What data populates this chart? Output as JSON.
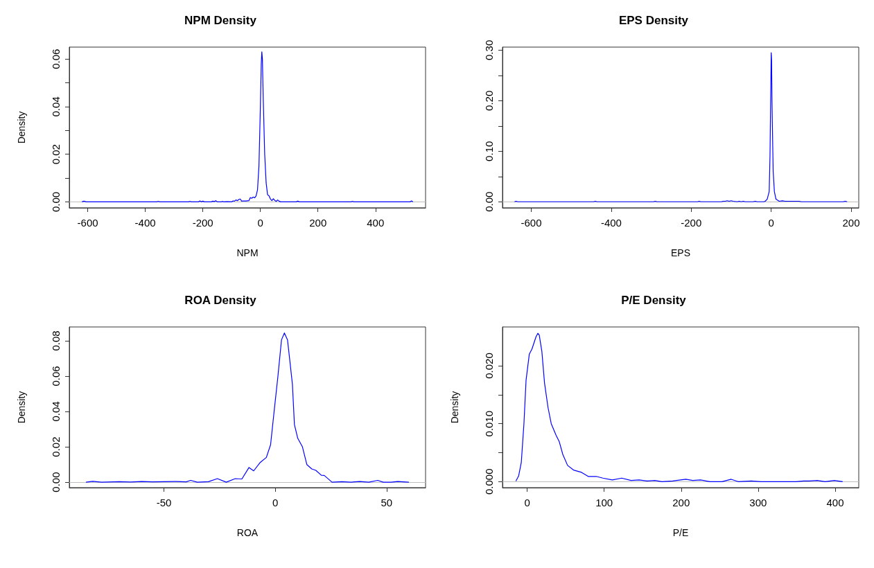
{
  "chart_data": [
    {
      "type": "line",
      "title": "NPM Density",
      "xlabel": "NPM",
      "ylabel": "Density",
      "color": "#0000ff",
      "marker": "none",
      "xlim": [
        -664,
        574
      ],
      "xticks": [
        -600,
        -400,
        -200,
        0,
        200,
        400
      ],
      "ylim": [
        -0.0025,
        0.065
      ],
      "yticks": [
        {
          "value": 0,
          "label": "0.00"
        },
        {
          "value": 0.01,
          "label": null
        },
        {
          "value": 0.02,
          "label": "0.02"
        },
        {
          "value": 0.03,
          "label": null
        },
        {
          "value": 0.04,
          "label": "0.04"
        },
        {
          "value": 0.05,
          "label": null
        },
        {
          "value": 0.06,
          "label": "0.06"
        }
      ],
      "ref_lines": [
        {
          "axis": "y",
          "value": 0,
          "color": "#bebebe"
        }
      ],
      "x": [
        -620,
        -613,
        -606,
        -360,
        -355,
        -350,
        -250,
        -245,
        -240,
        -215,
        -210,
        -205,
        -200,
        -195,
        -170,
        -165,
        -160,
        -155,
        -150,
        -135,
        -132,
        -128,
        -115,
        -100,
        -95,
        -90,
        -85,
        -80,
        -75,
        -70,
        -65,
        -60,
        -50,
        -40,
        -35,
        -30,
        -25,
        -20,
        -15,
        -10,
        -5,
        0,
        3,
        5,
        7,
        10,
        15,
        20,
        25,
        30,
        35,
        40,
        45,
        50,
        55,
        60,
        65,
        70,
        125,
        130,
        135,
        315,
        320,
        325,
        520,
        525,
        530
      ],
      "values": [
        0,
        0.0003,
        0,
        0,
        0.0002,
        0,
        0,
        0.0002,
        0,
        0,
        0.0004,
        0,
        0.0003,
        0,
        0,
        0.0003,
        0.0001,
        0.0005,
        0,
        0,
        0.0002,
        0,
        0.0001,
        0,
        0.0004,
        0.0003,
        0.0008,
        0.0005,
        0.001,
        0.0012,
        0.0003,
        0.0004,
        0.0004,
        0.0005,
        0.0018,
        0.0015,
        0.002,
        0.0017,
        0.0025,
        0.005,
        0.015,
        0.04,
        0.058,
        0.063,
        0.06,
        0.043,
        0.02,
        0.008,
        0.003,
        0.0025,
        0.0012,
        0.0005,
        0.0013,
        0.0006,
        0.0002,
        0.0008,
        0.0003,
        0,
        0,
        0.0003,
        0,
        0,
        0.0002,
        0,
        0,
        0.0004,
        0
      ]
    },
    {
      "type": "line",
      "title": "EPS Density",
      "xlabel": "EPS",
      "color": "#0000ff",
      "marker": "none",
      "xlim": [
        -672,
        219
      ],
      "xticks": [
        -600,
        -400,
        -200,
        0,
        200
      ],
      "ylim": [
        -0.012,
        0.306
      ],
      "yticks": [
        {
          "value": 0,
          "label": "0.00"
        },
        {
          "value": 0.05,
          "label": null
        },
        {
          "value": 0.1,
          "label": "0.10"
        },
        {
          "value": 0.15,
          "label": null
        },
        {
          "value": 0.2,
          "label": "0.20"
        },
        {
          "value": 0.25,
          "label": null
        },
        {
          "value": 0.3,
          "label": "0.30"
        }
      ],
      "ref_lines": [
        {
          "axis": "y",
          "value": 0,
          "color": "#bebebe"
        }
      ],
      "x": [
        -642,
        -638,
        -634,
        -444,
        -440,
        -436,
        -294,
        -290,
        -286,
        -184,
        -180,
        -176,
        -124,
        -120,
        -115,
        -110,
        -105,
        -100,
        -95,
        -85,
        -80,
        -75,
        -70,
        -65,
        -45,
        -40,
        -35,
        -18,
        -15,
        -10,
        -5,
        -3,
        -1,
        0,
        1,
        2,
        3,
        5,
        8,
        12,
        20,
        28,
        35,
        45,
        65,
        70,
        75,
        180,
        185,
        190
      ],
      "values": [
        0,
        0.001,
        0,
        0,
        0.001,
        0,
        0,
        0.001,
        0,
        0,
        0.001,
        0,
        0,
        0.001,
        0.001,
        0.002,
        0.001,
        0.002,
        0.001,
        0,
        0.001,
        0,
        0.001,
        0,
        0,
        0.001,
        0,
        0,
        0.001,
        0.005,
        0.02,
        0.09,
        0.22,
        0.295,
        0.28,
        0.2,
        0.15,
        0.06,
        0.02,
        0.005,
        0.001,
        0.002,
        0.001,
        0.001,
        0.001,
        0.001,
        0,
        0,
        0.001,
        0
      ]
    },
    {
      "type": "line",
      "title": "ROA Density",
      "xlabel": "ROA",
      "ylabel": "Density",
      "color": "#0000ff",
      "marker": "none",
      "xlim": [
        -92.5,
        67.5
      ],
      "xticks": [
        -50,
        0,
        50
      ],
      "ylim": [
        -0.0031,
        0.0878
      ],
      "yticks": [
        {
          "value": 0,
          "label": "0.00"
        },
        {
          "value": 0.02,
          "label": "0.02"
        },
        {
          "value": 0.04,
          "label": "0.04"
        },
        {
          "value": 0.06,
          "label": "0.06"
        },
        {
          "value": 0.08,
          "label": "0.08"
        }
      ],
      "ref_lines": [
        {
          "axis": "y",
          "value": 0,
          "color": "#bebebe"
        }
      ],
      "x": [
        -85,
        -82,
        -78,
        -70,
        -65,
        -60,
        -55,
        -50,
        -45,
        -40,
        -38,
        -35,
        -30,
        -26,
        -22,
        -18,
        -15,
        -11.8,
        -9.7,
        -6.9,
        -4,
        -2.1,
        -0.6,
        1.2,
        2.8,
        4.1,
        5.5,
        6.4,
        7.7,
        8.6,
        10.1,
        12.2,
        14.2,
        16.4,
        18.2,
        20.7,
        22,
        25.5,
        30,
        34,
        38,
        42,
        46,
        48.5,
        52,
        55,
        60
      ],
      "values": [
        0,
        0.0005,
        0,
        0.0003,
        0.0001,
        0.0004,
        0.0002,
        0.0003,
        0.0004,
        0.0002,
        0.001,
        0,
        0.0003,
        0.002,
        0,
        0.002,
        0.0018,
        0.0083,
        0.0064,
        0.011,
        0.014,
        0.0212,
        0.039,
        0.06,
        0.0805,
        0.0844,
        0.0805,
        0.0703,
        0.0554,
        0.0326,
        0.0248,
        0.02,
        0.0099,
        0.0075,
        0.0067,
        0.0039,
        0.0038,
        0,
        0.0003,
        0,
        0.0004,
        0,
        0.001,
        0,
        0,
        0.0004,
        0
      ]
    },
    {
      "type": "line",
      "title": "P/E Density",
      "xlabel": "P/E",
      "ylabel": "Density",
      "color": "#0000ff",
      "marker": "none",
      "xlim": [
        -32,
        430.6
      ],
      "xticks": [
        0,
        100,
        200,
        300,
        400
      ],
      "ylim": [
        -0.00104,
        0.0267
      ],
      "yticks": [
        {
          "value": 0,
          "label": "0.000"
        },
        {
          "value": 0.005,
          "label": null
        },
        {
          "value": 0.01,
          "label": "0.010"
        },
        {
          "value": 0.015,
          "label": null
        },
        {
          "value": 0.02,
          "label": "0.020"
        }
      ],
      "ref_lines": [
        {
          "axis": "y",
          "value": 0,
          "color": "#bebebe"
        }
      ],
      "x": [
        -14.6,
        -11,
        -7.6,
        -4.2,
        -1.4,
        2.8,
        6.3,
        11.5,
        13.9,
        15.7,
        19.1,
        22.6,
        27.1,
        31.3,
        37.6,
        41.7,
        46.3,
        52.5,
        60.2,
        70.6,
        79.3,
        89.7,
        98.4,
        110.6,
        122.8,
        135,
        145.4,
        155.8,
        166,
        175,
        188.9,
        206,
        215,
        225,
        237.5,
        253,
        265,
        274,
        291,
        303.6,
        349,
        359,
        366,
        376.7,
        387,
        399,
        409.7
      ],
      "values": [
        0.0001,
        0.001,
        0.0033,
        0.0099,
        0.0175,
        0.022,
        0.0229,
        0.025,
        0.0256,
        0.0253,
        0.0225,
        0.017,
        0.0128,
        0.01,
        0.008,
        0.0069,
        0.0047,
        0.0028,
        0.002,
        0.0016,
        0.0009,
        0.0009,
        0.0006,
        0.0003,
        0.0006,
        0.0002,
        0.0003,
        0.0001,
        0.0002,
        0,
        0.0001,
        0.0004,
        0.0002,
        0.0003,
        0,
        0,
        0.0004,
        0,
        0.0001,
        0,
        0,
        0.0001,
        0.0001,
        0.0002,
        0,
        0.0002,
        0
      ]
    }
  ]
}
